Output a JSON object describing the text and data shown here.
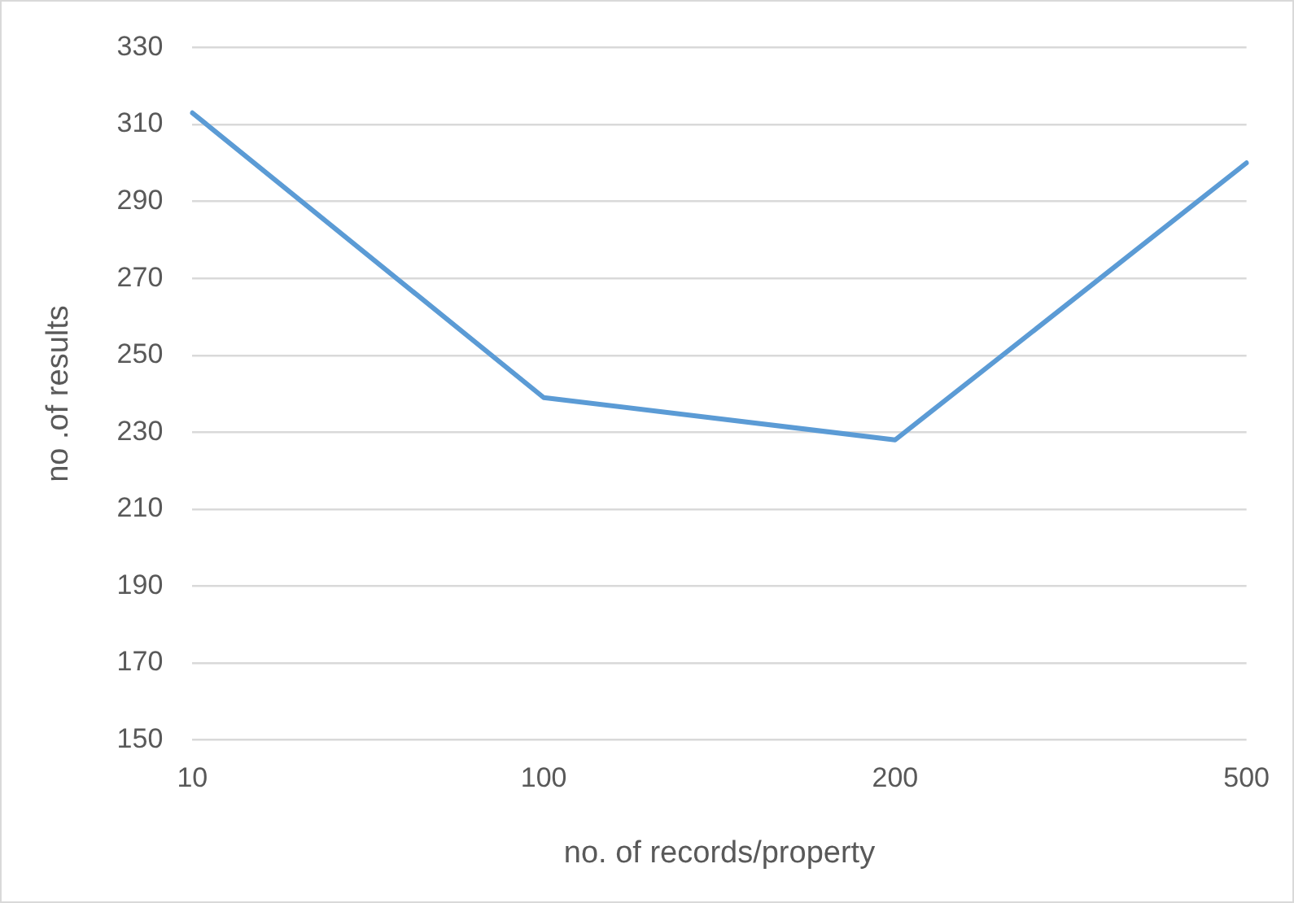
{
  "chart_data": {
    "type": "line",
    "xlabel": "no. of records/property",
    "ylabel": "no .of results",
    "categories": [
      "10",
      "100",
      "200",
      "500"
    ],
    "series": [
      {
        "color": "#5b9bd5",
        "values": [
          313,
          239,
          228,
          300
        ]
      }
    ],
    "ylim": [
      150,
      330
    ],
    "yticks": [
      150,
      170,
      190,
      210,
      230,
      250,
      270,
      290,
      310,
      330
    ],
    "grid": "y",
    "legend": false,
    "marker": "none",
    "line_style": "solid"
  }
}
